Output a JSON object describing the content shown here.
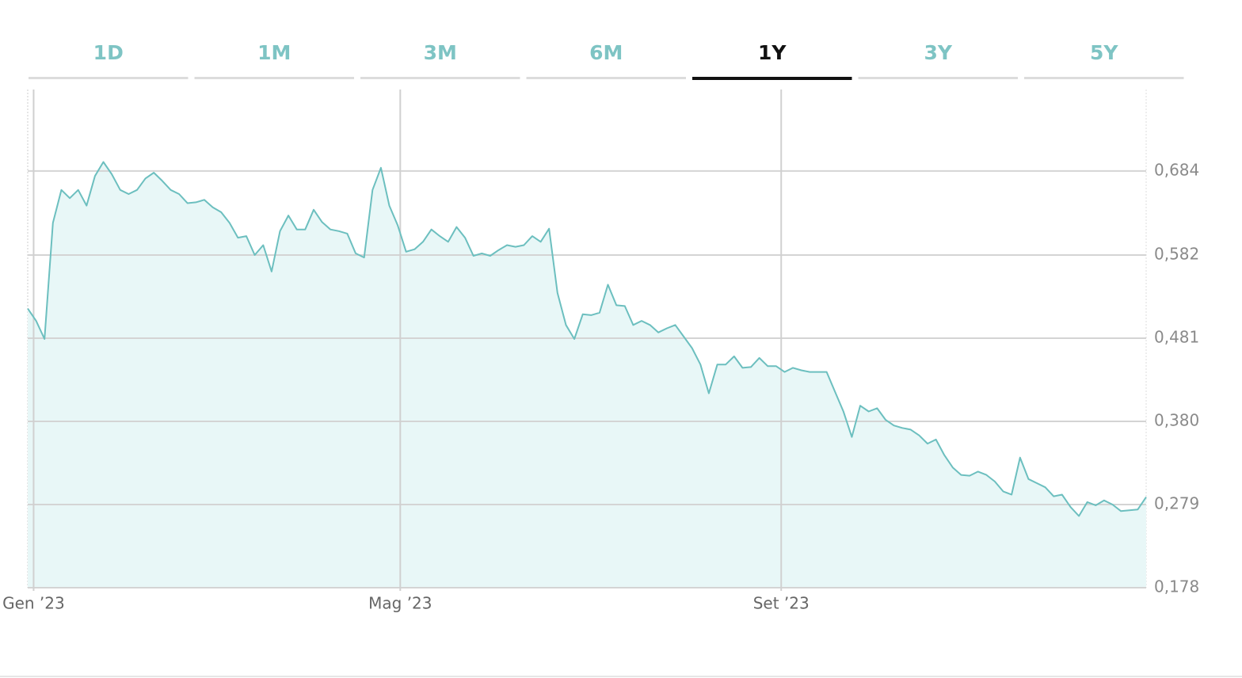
{
  "tabs": [
    "1D",
    "1M",
    "3M",
    "6M",
    "1Y",
    "3Y",
    "5Y"
  ],
  "active_tab": 4,
  "chart_data": {
    "type": "area",
    "color": "#6cbfbf",
    "fill": "#e8f7f7",
    "grid": true,
    "values": [
      0.517,
      0.502,
      0.48,
      0.621,
      0.661,
      0.651,
      0.661,
      0.642,
      0.678,
      0.695,
      0.68,
      0.661,
      0.656,
      0.661,
      0.675,
      0.682,
      0.672,
      0.661,
      0.656,
      0.645,
      0.646,
      0.649,
      0.64,
      0.634,
      0.621,
      0.603,
      0.605,
      0.582,
      0.594,
      0.562,
      0.611,
      0.63,
      0.613,
      0.613,
      0.637,
      0.622,
      0.613,
      0.611,
      0.608,
      0.584,
      0.579,
      0.661,
      0.688,
      0.642,
      0.618,
      0.586,
      0.589,
      0.598,
      0.613,
      0.605,
      0.598,
      0.616,
      0.603,
      0.581,
      0.584,
      0.581,
      0.588,
      0.594,
      0.592,
      0.594,
      0.605,
      0.598,
      0.614,
      0.536,
      0.497,
      0.48,
      0.51,
      0.509,
      0.512,
      0.546,
      0.521,
      0.52,
      0.497,
      0.502,
      0.497,
      0.488,
      0.493,
      0.497,
      0.483,
      0.469,
      0.449,
      0.414,
      0.449,
      0.449,
      0.459,
      0.445,
      0.446,
      0.457,
      0.447,
      0.447,
      0.44,
      0.445,
      0.442,
      0.44,
      0.44,
      0.44,
      0.416,
      0.392,
      0.361,
      0.399,
      0.392,
      0.396,
      0.382,
      0.375,
      0.372,
      0.37,
      0.363,
      0.353,
      0.358,
      0.339,
      0.324,
      0.315,
      0.314,
      0.319,
      0.315,
      0.307,
      0.295,
      0.291,
      0.336,
      0.31,
      0.305,
      0.3,
      0.289,
      0.291,
      0.276,
      0.265,
      0.282,
      0.278,
      0.284,
      0.279,
      0.271,
      0.272,
      0.273,
      0.288
    ],
    "xlim": [
      0,
      133
    ],
    "xticks": [
      {
        "value": 0.7,
        "label": "Gen ’23"
      },
      {
        "value": 44.3,
        "label": "Mag ’23"
      },
      {
        "value": 89.6,
        "label": "Set ’23"
      }
    ],
    "ylim": [
      0.178,
      0.783
    ],
    "yticks": [
      {
        "value": 0.178,
        "label": "0,178"
      },
      {
        "value": 0.279,
        "label": "0,279"
      },
      {
        "value": 0.38,
        "label": "0,380"
      },
      {
        "value": 0.481,
        "label": "0,481"
      },
      {
        "value": 0.582,
        "label": "0,582"
      },
      {
        "value": 0.684,
        "label": "0,684"
      }
    ]
  }
}
